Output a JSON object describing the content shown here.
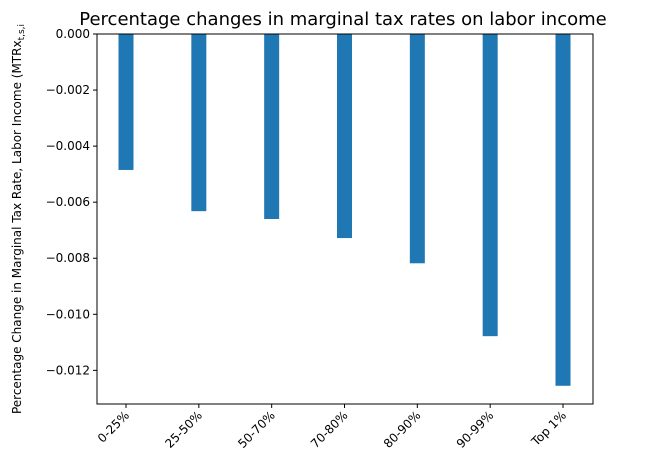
{
  "chart_data": {
    "type": "bar",
    "title": "Percentage changes in marginal tax rates on labor income",
    "xlabel": "",
    "ylabel": "Percentage Change in Marginal Tax Rate, Labor Income (MTRx",
    "ylabel_subscript": "t,s,i",
    "categories": [
      "0-25%",
      "25-50%",
      "50-70%",
      "70-80%",
      "80-90%",
      "90-99%",
      "Top 1%"
    ],
    "values": [
      -0.00485,
      -0.00632,
      -0.0066,
      -0.00728,
      -0.00818,
      -0.01078,
      -0.01255
    ],
    "ylim": [
      -0.0132,
      0.0
    ],
    "yticks": [
      0.0,
      -0.002,
      -0.004,
      -0.006,
      -0.008,
      -0.01,
      -0.012
    ],
    "ytick_labels": [
      "0.000",
      "−0.002",
      "−0.004",
      "−0.006",
      "−0.008",
      "−0.010",
      "−0.012"
    ],
    "bar_color": "#1f77b4",
    "grid": false,
    "xtick_rotation": 45
  }
}
